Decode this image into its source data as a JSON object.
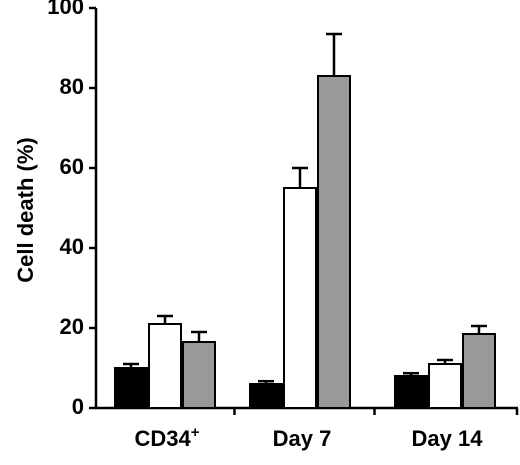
{
  "chart_data": {
    "type": "bar",
    "title": "",
    "xlabel": "",
    "ylabel": "Cell death (%)",
    "ylim": [
      0,
      100
    ],
    "yticks": [
      0,
      20,
      40,
      60,
      80,
      100
    ],
    "categories": [
      "CD34",
      "Day 7",
      "Day 14"
    ],
    "category_superscripts": [
      "+",
      "",
      ""
    ],
    "grid": false,
    "legend": "none",
    "series": [
      {
        "color": "#000000",
        "values": [
          10,
          6,
          8
        ],
        "errors": [
          1,
          0.7,
          0.7
        ]
      },
      {
        "color": "#ffffff",
        "values": [
          21,
          55,
          11
        ],
        "errors": [
          2,
          5,
          1
        ]
      },
      {
        "color": "#999999",
        "values": [
          16.5,
          83,
          18.5
        ],
        "errors": [
          2.5,
          10.5,
          2
        ]
      }
    ]
  }
}
